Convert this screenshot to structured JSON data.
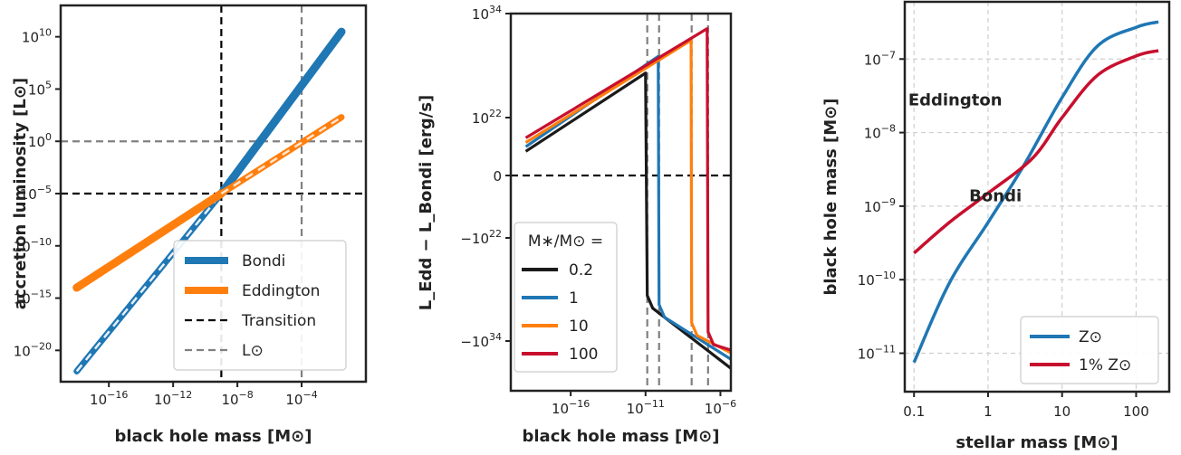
{
  "chart_data": [
    {
      "type": "line",
      "xlabel": "black hole mass [M⊙]",
      "ylabel": "accretion luminosity [L⊙]",
      "x_scale": "log",
      "y_scale": "log",
      "xlim": [
        1e-19,
        1.0
      ],
      "ylim": [
        1e-23,
        10000000000000.0
      ],
      "x_ticks": [
        {
          "value": 1e-16,
          "label": "10^-16"
        },
        {
          "value": 1e-12,
          "label": "10^-12"
        },
        {
          "value": 1e-08,
          "label": "10^-8"
        },
        {
          "value": 0.0001,
          "label": "10^-4"
        }
      ],
      "y_ticks": [
        {
          "value": 10000000000.0,
          "label": "10^10"
        },
        {
          "value": 100000.0,
          "label": "10^5"
        },
        {
          "value": 1.0,
          "label": "10^0"
        },
        {
          "value": 1e-05,
          "label": "10^-5"
        },
        {
          "value": 1e-10,
          "label": "10^-10"
        },
        {
          "value": 1e-15,
          "label": "10^-15"
        },
        {
          "value": 1e-20,
          "label": "10^-20"
        }
      ],
      "grid": false,
      "legend_position": "lower-right",
      "series": [
        {
          "name": "Bondi",
          "color": "#1f77b4",
          "style": "solid-thick",
          "points": [
            [
              1e-18,
              1e-22
            ],
            [
              1e-09,
              1e-05
            ],
            [
              0.03,
              30000000000.0
            ]
          ]
        },
        {
          "name": "Eddington",
          "color": "#ff7f0e",
          "style": "solid-thick",
          "points": [
            [
              1e-18,
              1e-14
            ],
            [
              1e-09,
              1e-05
            ],
            [
              0.03,
              200.0
            ]
          ]
        },
        {
          "name": "Transition",
          "color": "#000000",
          "style": "dashed",
          "points": []
        },
        {
          "name": "L⊙",
          "color": "#808080",
          "style": "dashed",
          "points": []
        }
      ],
      "reference_lines": [
        {
          "series": "Transition",
          "orientation": "vertical",
          "value": 1e-09
        },
        {
          "series": "Transition",
          "orientation": "horizontal",
          "value": 1e-05
        },
        {
          "series": "L⊙",
          "orientation": "vertical",
          "value": 0.0001
        },
        {
          "series": "L⊙",
          "orientation": "horizontal",
          "value": 1.0
        }
      ]
    },
    {
      "type": "line",
      "xlabel": "black hole mass [M⊙]",
      "ylabel": "L_Edd − L_Bondi [erg/s]",
      "x_scale": "log",
      "y_scale": "symlog",
      "xlim": [
        1e-20,
        5e-06
      ],
      "x_ticks": [
        {
          "value": 1e-16,
          "label": "10^-16"
        },
        {
          "value": 1e-11,
          "label": "10^-11"
        },
        {
          "value": 1e-06,
          "label": "10^-6"
        }
      ],
      "y_ticks": [
        {
          "value": "1e34",
          "label": "10^34"
        },
        {
          "value": "1e22",
          "label": "10^22"
        },
        {
          "value": "0",
          "label": "0"
        },
        {
          "value": "-1e22",
          "label": "−10^22"
        },
        {
          "value": "-1e34",
          "label": "−10^34"
        }
      ],
      "grid": false,
      "legend_title": "M∗/M⊙ =",
      "legend_position": "lower-left",
      "zero_line": true,
      "series": [
        {
          "name": "0.2",
          "color": "#1a1a1a",
          "transition_mass": 1.3e-11,
          "points": [
            [
              1e-19,
              3e+18
            ],
            [
              1e-11,
              2e+27
            ],
            [
              1.3e-11,
              -1e+29
            ],
            [
              5e-06,
              -1e+37
            ]
          ]
        },
        {
          "name": "1",
          "color": "#1f77b4",
          "transition_mass": 8e-11,
          "points": [
            [
              1e-19,
              1e+19
            ],
            [
              7e-11,
              1.5e+29
            ],
            [
              8e-11,
              -1e+30
            ],
            [
              5e-06,
              -1e+36
            ]
          ]
        },
        {
          "name": "10",
          "color": "#ff7f0e",
          "transition_mass": 1.2e-08,
          "points": [
            [
              1e-19,
              3e+19
            ],
            [
              1.1e-08,
              1e+31
            ],
            [
              1.2e-08,
              -1e+32
            ],
            [
              5e-06,
              -2e+35
            ]
          ]
        },
        {
          "name": "100",
          "color": "#c80f2e",
          "transition_mass": 1.5e-07,
          "points": [
            [
              1e-19,
              1e+20
            ],
            [
              1.3e-07,
              2e+32
            ],
            [
              1.5e-07,
              -1e+33
            ],
            [
              5e-06,
              -1e+35
            ]
          ]
        }
      ]
    },
    {
      "type": "line",
      "xlabel": "stellar mass [M⊙]",
      "ylabel": "black hole mass [M⊙]",
      "x_scale": "log",
      "y_scale": "log",
      "xlim": [
        0.075,
        280
      ],
      "ylim": [
        3e-12,
        6e-07
      ],
      "x_ticks": [
        {
          "value": 0.1,
          "label": "0.1"
        },
        {
          "value": 1,
          "label": "1"
        },
        {
          "value": 10,
          "label": "10"
        },
        {
          "value": 100,
          "label": "100"
        }
      ],
      "y_ticks": [
        {
          "value": 1e-07,
          "label": "10^-7"
        },
        {
          "value": 1e-08,
          "label": "10^-8"
        },
        {
          "value": 1e-09,
          "label": "10^-9"
        },
        {
          "value": 1e-10,
          "label": "10^-10"
        },
        {
          "value": 1e-11,
          "label": "10^-11"
        }
      ],
      "grid": true,
      "legend_position": "lower-right",
      "annotations": [
        {
          "text": "Eddington",
          "x": 0.6,
          "y": 1e-08
        },
        {
          "text": "Bondi",
          "x": 4,
          "y": 5e-10
        }
      ],
      "series": [
        {
          "name": "Z⊙",
          "color": "#1f77b4",
          "points": [
            [
              0.1,
              7.5e-12
            ],
            [
              0.3,
              9e-11
            ],
            [
              1,
              6e-10
            ],
            [
              3,
              3.5e-09
            ],
            [
              10,
              3e-08
            ],
            [
              30,
              1.5e-07
            ],
            [
              100,
              2.7e-07
            ],
            [
              200,
              3.2e-07
            ]
          ]
        },
        {
          "name": "1% Z⊙",
          "color": "#c80f2e",
          "points": [
            [
              0.1,
              2.3e-10
            ],
            [
              0.3,
              6e-10
            ],
            [
              1,
              1.5e-09
            ],
            [
              4,
              4.5e-09
            ],
            [
              10,
              1.6e-08
            ],
            [
              30,
              6e-08
            ],
            [
              100,
              1.1e-07
            ],
            [
              200,
              1.3e-07
            ]
          ]
        }
      ]
    }
  ]
}
